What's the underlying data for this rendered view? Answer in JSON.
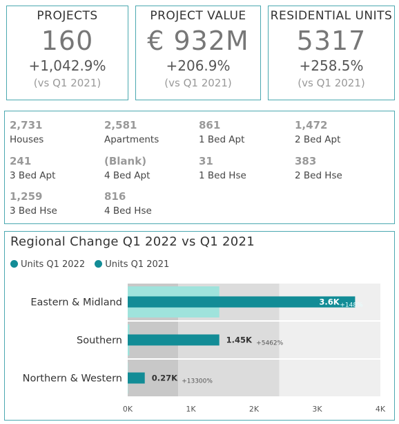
{
  "kpis": [
    {
      "title": "PROJECTS",
      "value": "160",
      "change": "+1,042.9%",
      "compare": "(vs Q1 2021)"
    },
    {
      "title": "PROJECT VALUE",
      "value": "€ 932M",
      "change": "+206.9%",
      "compare": "(vs Q1 2021)"
    },
    {
      "title": "RESIDENTIAL UNITS",
      "value": "5317",
      "change": "+258.5%",
      "compare": "(vs Q1 2021)"
    }
  ],
  "breakdown": [
    {
      "value": "2,731",
      "label": "Houses"
    },
    {
      "value": "2,581",
      "label": "Apartments"
    },
    {
      "value": "861",
      "label": "1 Bed Apt"
    },
    {
      "value": "1,472",
      "label": "2 Bed Apt"
    },
    {
      "value": "241",
      "label": "3 Bed Apt"
    },
    {
      "value": "(Blank)",
      "label": "4 Bed Apt"
    },
    {
      "value": "31",
      "label": "1 Bed Hse"
    },
    {
      "value": "383",
      "label": "2 Bed Hse"
    },
    {
      "value": "1,259",
      "label": "3 Bed Hse"
    },
    {
      "value": "816",
      "label": "4 Bed Hse"
    }
  ],
  "chart_data": {
    "type": "bar",
    "orientation": "horizontal",
    "title": "Regional Change Q1 2022 vs Q1 2021",
    "categories": [
      "Eastern & Midland",
      "Southern",
      "Northern & Western"
    ],
    "series": [
      {
        "name": "Units Q1 2022",
        "values": [
          3600,
          1450,
          270
        ],
        "labels": [
          "3.6K",
          "1.45K",
          "0.27K"
        ],
        "color": "#128c96"
      },
      {
        "name": "Units Q1 2021",
        "values": [
          1450,
          26,
          2
        ],
        "color": "#9fe3dc"
      }
    ],
    "change_labels": [
      "+148%",
      "+5462%",
      "+13300%"
    ],
    "xticks": [
      "0K",
      "1K",
      "2K",
      "3K",
      "4K"
    ],
    "xlim": [
      0,
      4000
    ],
    "background_bands": [
      {
        "from": 0,
        "to": 800,
        "color": "#c8c8c8"
      },
      {
        "from": 800,
        "to": 2400,
        "color": "#dcdcdc"
      },
      {
        "from": 2400,
        "to": 4000,
        "color": "#efefef"
      }
    ],
    "legend": "top-left"
  },
  "colors": {
    "accent": "#128c96",
    "border": "#4aa8b0",
    "prior": "#9fe3dc"
  }
}
